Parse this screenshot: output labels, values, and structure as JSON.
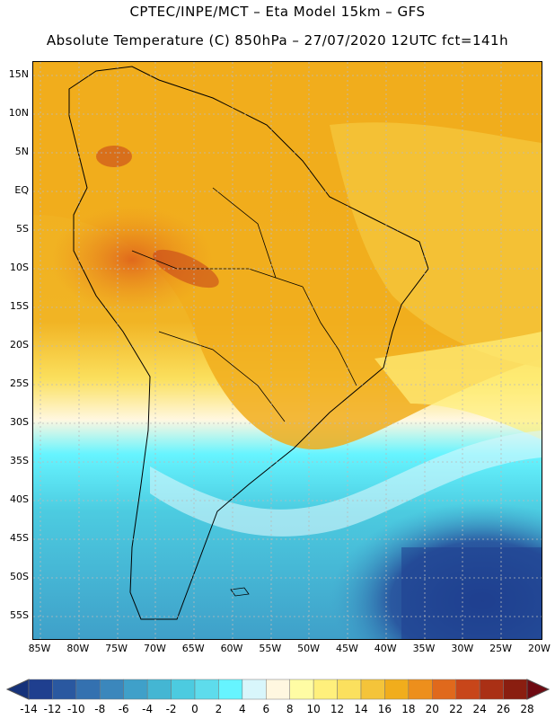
{
  "header": {
    "title_line1": "CPTEC/INPE/MCT –  Eta Model 15km – GFS",
    "title_line2": "Absolute Temperature (C) 850hPa – 27/07/2020 12UTC fct=141h"
  },
  "lat_ticks": [
    "15N",
    "10N",
    "5N",
    "EQ",
    "5S",
    "10S",
    "15S",
    "20S",
    "25S",
    "30S",
    "35S",
    "40S",
    "45S",
    "50S",
    "55S"
  ],
  "lon_ticks": [
    "85W",
    "80W",
    "75W",
    "70W",
    "65W",
    "60W",
    "55W",
    "50W",
    "45W",
    "40W",
    "35W",
    "30W",
    "25W",
    "20W"
  ],
  "colorbar": {
    "labels": [
      "-14",
      "-12",
      "-10",
      "-8",
      "-6",
      "-4",
      "-2",
      "0",
      "2",
      "4",
      "6",
      "8",
      "10",
      "12",
      "14",
      "16",
      "18",
      "20",
      "22",
      "24",
      "26",
      "28"
    ],
    "colors": [
      "#1f3f8f",
      "#2a58a0",
      "#3471b0",
      "#3b87bc",
      "#3fa0c9",
      "#44b6d3",
      "#4ccbe0",
      "#5edcec",
      "#66f4ff",
      "#d8f6fb",
      "#fff7e0",
      "#fffca4",
      "#fff07c",
      "#fbe05e",
      "#f4c43a",
      "#f1ad1c",
      "#ed8f1c",
      "#e0691c",
      "#c8461a",
      "#aa3015",
      "#8a1e10"
    ],
    "under_color": "#16327a",
    "over_color": "#6e0a12"
  }
}
